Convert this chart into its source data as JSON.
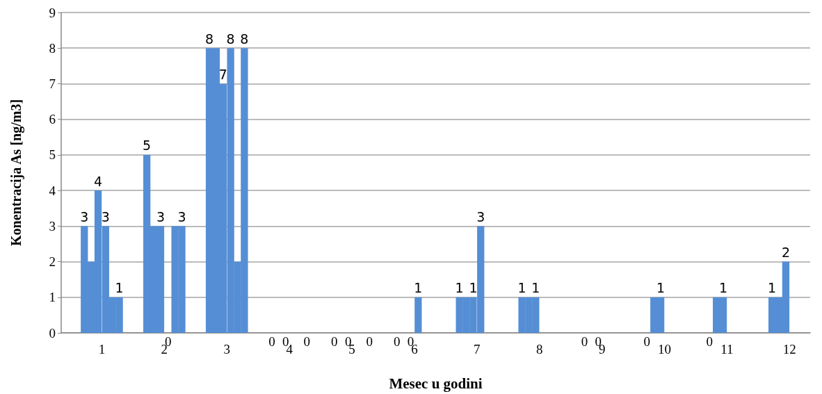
{
  "chart_data": {
    "type": "bar",
    "xlabel": "Mesec u godini",
    "ylabel": "Konentracija As [ng/m3]",
    "x": [
      0.72,
      0.83,
      0.94,
      1.06,
      1.17,
      1.28,
      1.72,
      1.83,
      1.94,
      2.06,
      2.17,
      2.28,
      2.72,
      2.83,
      2.94,
      3.06,
      3.17,
      3.28,
      3.72,
      3.94,
      4.28,
      4.72,
      4.94,
      5.28,
      5.72,
      5.94,
      6.06,
      6.72,
      6.83,
      6.94,
      7.06,
      7.72,
      7.83,
      7.94,
      8.72,
      8.94,
      9.72,
      9.83,
      9.94,
      10.72,
      10.83,
      10.94,
      11.72,
      11.83,
      11.94
    ],
    "values": [
      3,
      2,
      4,
      3,
      1,
      1,
      5,
      3,
      3,
      0,
      3,
      3,
      8,
      8,
      7,
      8,
      2,
      8,
      0,
      0,
      0,
      0,
      0,
      0,
      0,
      0,
      1,
      1,
      1,
      1,
      3,
      1,
      1,
      1,
      0,
      0,
      0,
      1,
      1,
      0,
      1,
      1,
      1,
      1,
      2
    ],
    "value_labels": [
      "3",
      null,
      "4",
      "3",
      null,
      "1",
      "5",
      null,
      "3",
      "0",
      null,
      "3",
      "8",
      null,
      "7",
      "8",
      null,
      "8",
      "0",
      "0",
      "0",
      "0",
      "0",
      "0",
      "0",
      "0",
      "1",
      "1",
      null,
      "1",
      "3",
      "1",
      null,
      "1",
      "0",
      "0",
      "0",
      null,
      "1",
      "0",
      null,
      "1",
      "1",
      null,
      "2"
    ],
    "color": "#558ed5",
    "xlim": [
      0.35,
      12.33
    ],
    "xticks": [
      1,
      2,
      3,
      4,
      5,
      6,
      7,
      8,
      9,
      10,
      11,
      12
    ],
    "ylim": [
      0,
      9
    ],
    "yticks": [
      0,
      1,
      2,
      3,
      4,
      5,
      6,
      7,
      8,
      9
    ],
    "grid": "y"
  }
}
